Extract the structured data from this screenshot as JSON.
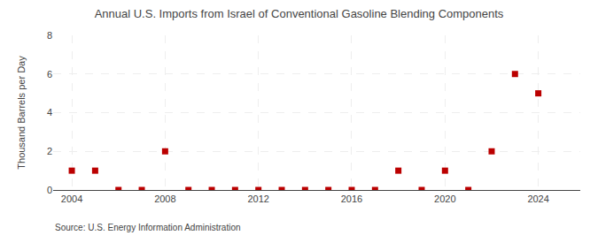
{
  "chart_data": {
    "type": "scatter",
    "title": "Annual U.S. Imports from Israel of Conventional Gasoline Blending Components",
    "ylabel": "Thousand Barrels per Day",
    "annotations": [
      "Source: U.S. Energy Information Administration"
    ],
    "x": [
      2004,
      2005,
      2006,
      2007,
      2008,
      2009,
      2010,
      2011,
      2012,
      2013,
      2014,
      2015,
      2016,
      2017,
      2018,
      2019,
      2020,
      2021,
      2022,
      2023,
      2024
    ],
    "values": [
      1,
      1,
      0,
      0,
      2,
      0,
      0,
      0,
      0,
      0,
      0,
      0,
      0,
      0,
      1,
      0,
      1,
      0,
      2,
      6,
      5
    ],
    "color": "#bb0000",
    "marker": "square",
    "xlim": [
      2003.2,
      2025.8
    ],
    "xticks": [
      2004,
      2008,
      2012,
      2016,
      2020,
      2024
    ],
    "ylim": [
      0,
      8
    ],
    "yticks": [
      0,
      2,
      4,
      6,
      8
    ],
    "grid": true
  }
}
